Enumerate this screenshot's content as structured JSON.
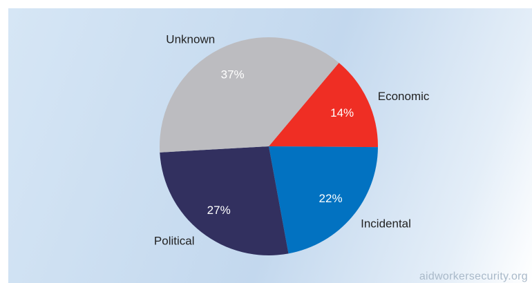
{
  "chart_data": {
    "type": "pie",
    "title": "",
    "slices": [
      {
        "label": "Economic",
        "pct_label": "14%",
        "value": 14,
        "color": "#ef2e24"
      },
      {
        "label": "Incidental",
        "pct_label": "22%",
        "value": 22,
        "color": "#0272c1"
      },
      {
        "label": "Political",
        "pct_label": "27%",
        "value": 27,
        "color": "#32305f"
      },
      {
        "label": "Unknown",
        "pct_label": "37%",
        "value": 37,
        "color": "#bcbcc0"
      }
    ]
  },
  "source": "aidworkersecurity.org"
}
